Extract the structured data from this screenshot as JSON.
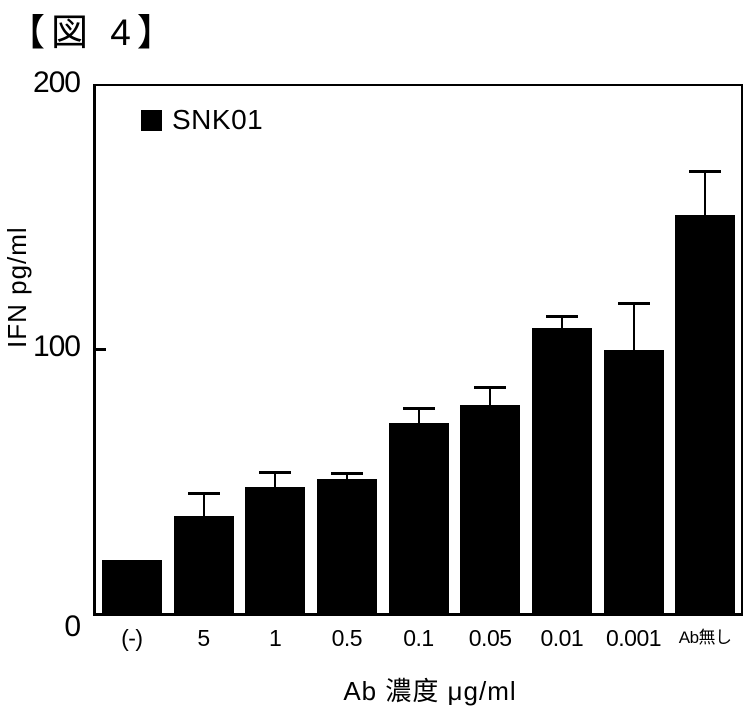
{
  "figure_label": "【図 4】",
  "legend": {
    "label": "SNK01",
    "marker": "filled-square",
    "marker_color": "#000000"
  },
  "chart_data": {
    "type": "bar",
    "title": "",
    "categories": [
      "(-)",
      "5",
      "1",
      "0.5",
      "0.1",
      "0.05",
      "0.01",
      "0.001",
      "Ab無し"
    ],
    "series": [
      {
        "name": "SNK01",
        "values": [
          20,
          37,
          48,
          51,
          72,
          79,
          108,
          100,
          151
        ],
        "error_upper": [
          0,
          9,
          6,
          2.5,
          6,
          7,
          5,
          18,
          17
        ],
        "color": "#000000"
      }
    ],
    "xlabel": "Ab 濃度 μg/ml",
    "ylabel": "IFN pg/ml",
    "ylim": [
      0,
      200
    ],
    "yticks": [
      0,
      100,
      200
    ],
    "grid": false,
    "legend_position": "top-left",
    "background": "#ffffff",
    "bar_color": "#000000"
  }
}
